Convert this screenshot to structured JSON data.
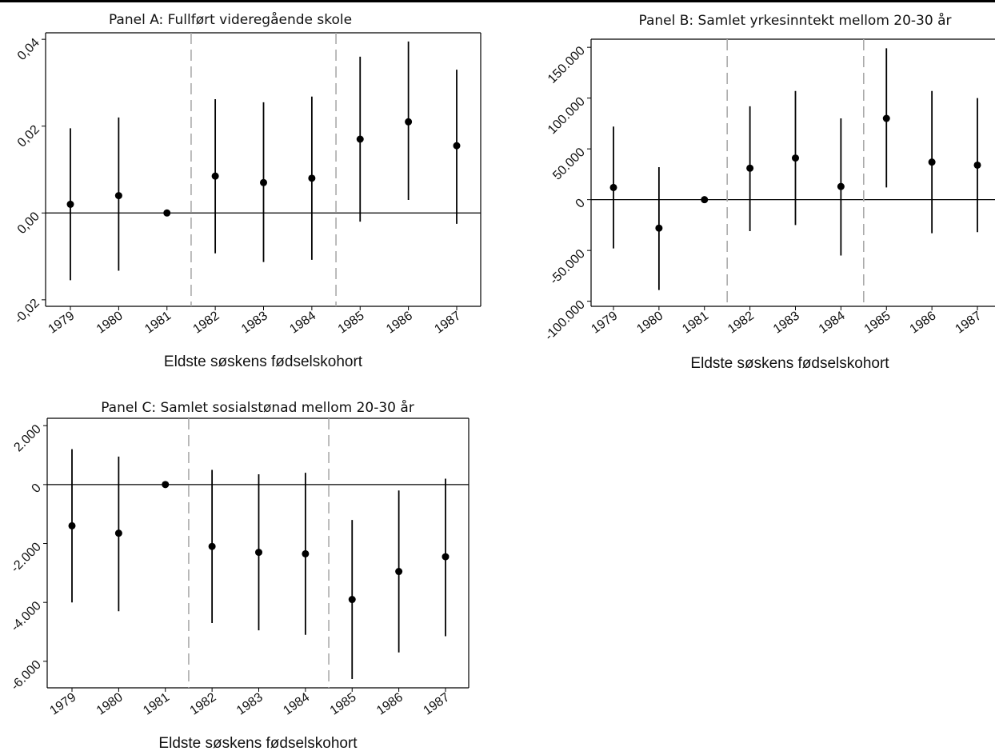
{
  "chart_data": [
    {
      "type": "scatter",
      "title": "Panel A: Fullført videregående skole",
      "xlabel": "Eldste søskens fødselskohort",
      "ylabel": "",
      "categories": [
        "1979",
        "1980",
        "1981",
        "1982",
        "1983",
        "1984",
        "1985",
        "1986",
        "1987"
      ],
      "values": [
        0.002,
        0.004,
        0.0,
        0.0085,
        0.007,
        0.008,
        0.017,
        0.021,
        0.0155
      ],
      "ci_low": [
        -0.0155,
        -0.0133,
        0.0,
        -0.0093,
        -0.0113,
        -0.0108,
        -0.002,
        0.003,
        -0.0025
      ],
      "ci_high": [
        0.0195,
        0.022,
        0.0,
        0.0262,
        0.0255,
        0.0268,
        0.036,
        0.0395,
        0.033
      ],
      "ylim": [
        -0.0215,
        0.0415
      ],
      "yticks": [
        -0.02,
        0.0,
        0.02,
        0.04
      ],
      "ytick_labels": [
        "-0,02",
        "0,00",
        "0,02",
        "0,04"
      ],
      "reference_line": 0,
      "vlines_after": [
        "1981",
        "1984"
      ],
      "grid": false,
      "colors": {
        "points": "#000000",
        "reference": "#000000",
        "vlines": "#aaaaaa"
      }
    },
    {
      "type": "scatter",
      "title": "Panel B: Samlet yrkesinntekt mellom 20-30 år",
      "xlabel": "Eldste søskens fødselskohort",
      "ylabel": "",
      "categories": [
        "1979",
        "1980",
        "1981",
        "1982",
        "1983",
        "1984",
        "1985",
        "1986",
        "1987"
      ],
      "values": [
        12000,
        -28000,
        0,
        31000,
        41000,
        13000,
        80000,
        37000,
        34000
      ],
      "ci_low": [
        -48000,
        -89000,
        0,
        -31000,
        -25000,
        -55000,
        12000,
        -33000,
        -32000
      ],
      "ci_high": [
        72000,
        32000,
        0,
        92000,
        107000,
        80000,
        149000,
        107000,
        100000
      ],
      "ylim": [
        -105000,
        158000
      ],
      "yticks": [
        -100000,
        -50000,
        0,
        50000,
        100000,
        150000
      ],
      "ytick_labels": [
        "-100.000",
        "-50.000",
        "0",
        "50.000",
        "100.000",
        "150.000"
      ],
      "reference_line": 0,
      "vlines_after": [
        "1981",
        "1984"
      ],
      "grid": false,
      "colors": {
        "points": "#000000",
        "reference": "#000000",
        "vlines": "#aaaaaa"
      }
    },
    {
      "type": "scatter",
      "title": "Panel C: Samlet sosialstønad mellom 20-30 år",
      "xlabel": "Eldste søskens fødselskohort",
      "ylabel": "",
      "categories": [
        "1979",
        "1980",
        "1981",
        "1982",
        "1983",
        "1984",
        "1985",
        "1986",
        "1987"
      ],
      "values": [
        -1400,
        -1650,
        0,
        -2100,
        -2300,
        -2350,
        -3900,
        -2950,
        -2450
      ],
      "ci_low": [
        -4000,
        -4300,
        0,
        -4700,
        -4950,
        -5100,
        -6600,
        -5700,
        -5150
      ],
      "ci_high": [
        1200,
        950,
        0,
        500,
        350,
        400,
        -1200,
        -200,
        200
      ],
      "ylim": [
        -6900,
        2250
      ],
      "yticks": [
        -6000,
        -4000,
        -2000,
        0,
        2000
      ],
      "ytick_labels": [
        "-6.000",
        "-4.000",
        "-2.000",
        "0",
        "2.000"
      ],
      "reference_line": 0,
      "vlines_after": [
        "1981",
        "1984"
      ],
      "grid": false,
      "colors": {
        "points": "#000000",
        "reference": "#000000",
        "vlines": "#aaaaaa"
      }
    }
  ]
}
